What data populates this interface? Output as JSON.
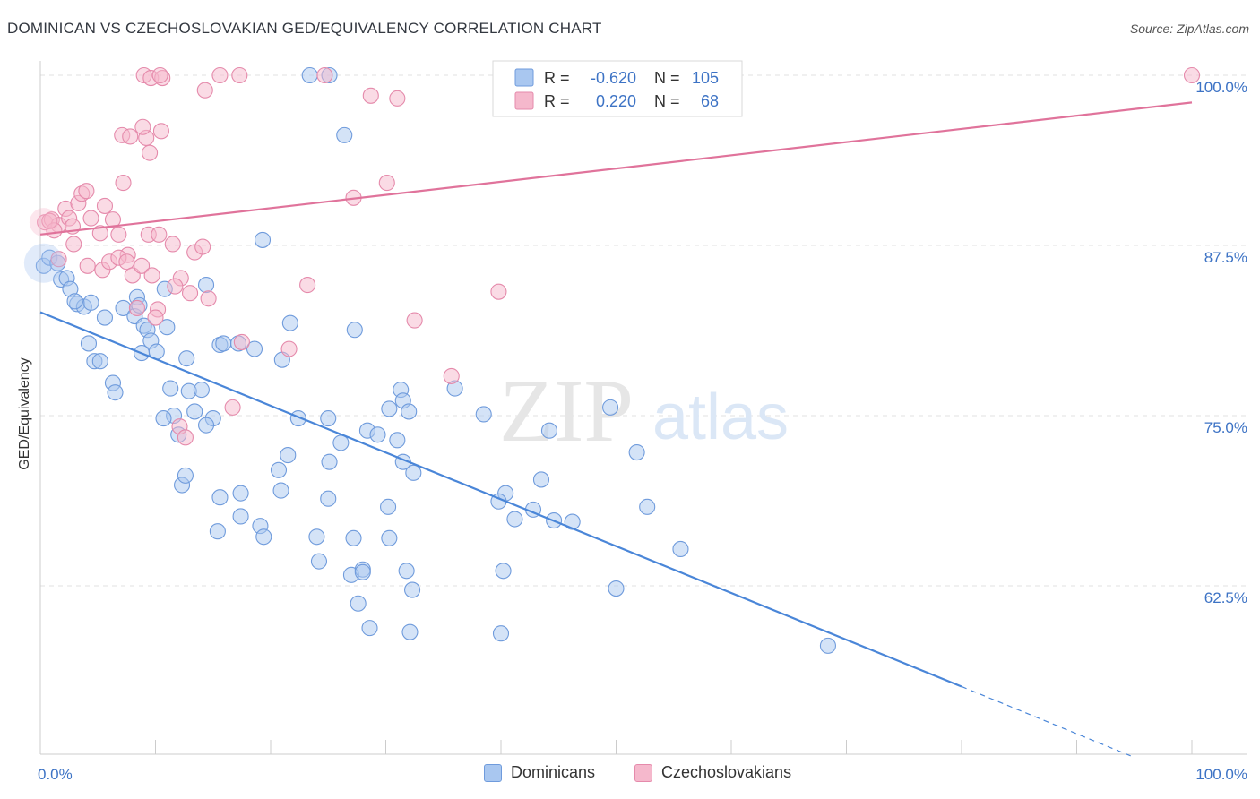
{
  "title": "DOMINICAN VS CZECHOSLOVAKIAN GED/EQUIVALENCY CORRELATION CHART",
  "source": "Source: ZipAtlas.com",
  "watermark": {
    "zip": "ZIP",
    "atlas": "atlas"
  },
  "colors": {
    "blue": "#4a86d8",
    "blue_fill": "#a9c7f0",
    "pink": "#e0739b",
    "pink_fill": "#f5b8cc",
    "axis_label_blue": "#3d73c5",
    "grid": "#e2e2e2"
  },
  "legend_top": [
    {
      "r_label": "R =",
      "r_value": "-0.620",
      "n_label": "N =",
      "n_value": "105"
    },
    {
      "r_label": "R =",
      "r_value": "0.220",
      "n_label": "N =",
      "n_value": "68"
    }
  ],
  "legend_bottom": [
    "Dominicans",
    "Czechoslovakians"
  ],
  "chart_data": {
    "type": "scatter",
    "xlabel": "",
    "ylabel": "GED/Equivalency",
    "xlim": [
      0,
      100
    ],
    "ylim": [
      52,
      100.5
    ],
    "x_tick_labels": [
      "0.0%",
      "100.0%"
    ],
    "y_ticks": [
      62.5,
      75.0,
      87.5,
      100.0
    ],
    "y_tick_labels": [
      "62.5%",
      "75.0%",
      "87.5%",
      "100.0%"
    ],
    "grid": true,
    "legend_placement": "top-center",
    "series": [
      {
        "name": "Dominicans",
        "r": -0.62,
        "n": 105,
        "trend": {
          "x0": 0,
          "y0": 82.6,
          "x1": 80,
          "y1": 55.1,
          "dash_x1": 95,
          "dash_y1": 49.9
        },
        "points": [
          [
            0.3,
            86.0
          ],
          [
            0.8,
            86.6
          ],
          [
            1.5,
            86.2
          ],
          [
            1.8,
            85.0
          ],
          [
            2.3,
            85.1
          ],
          [
            2.6,
            84.3
          ],
          [
            3.2,
            83.2
          ],
          [
            3.8,
            83.0
          ],
          [
            4.4,
            83.3
          ],
          [
            5.6,
            82.2
          ],
          [
            3.0,
            83.4
          ],
          [
            4.2,
            80.3
          ],
          [
            4.7,
            79.0
          ],
          [
            5.2,
            79.0
          ],
          [
            6.3,
            77.4
          ],
          [
            6.5,
            76.7
          ],
          [
            7.2,
            82.9
          ],
          [
            8.4,
            83.7
          ],
          [
            8.2,
            82.3
          ],
          [
            8.6,
            83.1
          ],
          [
            9.0,
            81.6
          ],
          [
            9.3,
            81.3
          ],
          [
            9.6,
            80.5
          ],
          [
            8.8,
            79.6
          ],
          [
            10.1,
            79.7
          ],
          [
            10.8,
            84.3
          ],
          [
            11.0,
            81.5
          ],
          [
            12.7,
            79.2
          ],
          [
            11.3,
            77.0
          ],
          [
            12.9,
            76.8
          ],
          [
            11.6,
            75.0
          ],
          [
            14.0,
            76.9
          ],
          [
            10.7,
            74.8
          ],
          [
            13.4,
            75.3
          ],
          [
            15.0,
            74.8
          ],
          [
            14.4,
            74.3
          ],
          [
            12.0,
            73.6
          ],
          [
            15.6,
            80.2
          ],
          [
            15.9,
            80.3
          ],
          [
            17.2,
            80.3
          ],
          [
            18.6,
            79.9
          ],
          [
            21.0,
            79.1
          ],
          [
            19.3,
            87.9
          ],
          [
            21.7,
            81.8
          ],
          [
            12.3,
            69.9
          ],
          [
            12.6,
            70.6
          ],
          [
            15.6,
            69.0
          ],
          [
            17.4,
            69.3
          ],
          [
            15.4,
            66.5
          ],
          [
            17.4,
            67.6
          ],
          [
            19.1,
            66.9
          ],
          [
            19.4,
            66.1
          ],
          [
            21.5,
            72.1
          ],
          [
            20.7,
            71.0
          ],
          [
            20.9,
            69.5
          ],
          [
            25.0,
            74.8
          ],
          [
            22.4,
            74.8
          ],
          [
            26.1,
            73.0
          ],
          [
            25.1,
            71.6
          ],
          [
            25.0,
            68.9
          ],
          [
            24.0,
            66.1
          ],
          [
            27.2,
            66.0
          ],
          [
            24.2,
            64.3
          ],
          [
            27.0,
            63.3
          ],
          [
            28.0,
            63.7
          ],
          [
            27.6,
            61.2
          ],
          [
            31.0,
            73.2
          ],
          [
            31.5,
            71.6
          ],
          [
            32.4,
            70.8
          ],
          [
            30.2,
            68.3
          ],
          [
            30.3,
            66.0
          ],
          [
            28.0,
            63.5
          ],
          [
            31.8,
            63.6
          ],
          [
            32.3,
            62.2
          ],
          [
            28.6,
            59.4
          ],
          [
            32.1,
            59.1
          ],
          [
            23.4,
            100.0
          ],
          [
            25.1,
            100.0
          ],
          [
            26.4,
            95.6
          ],
          [
            27.3,
            81.3
          ],
          [
            28.4,
            73.9
          ],
          [
            30.3,
            75.5
          ],
          [
            31.3,
            76.9
          ],
          [
            31.5,
            76.1
          ],
          [
            38.5,
            75.1
          ],
          [
            40.4,
            69.3
          ],
          [
            39.8,
            68.7
          ],
          [
            41.2,
            67.4
          ],
          [
            42.8,
            68.1
          ],
          [
            43.5,
            70.3
          ],
          [
            44.2,
            73.9
          ],
          [
            44.6,
            67.3
          ],
          [
            46.2,
            67.2
          ],
          [
            49.5,
            75.6
          ],
          [
            51.8,
            72.3
          ],
          [
            52.7,
            68.3
          ],
          [
            50.0,
            62.3
          ],
          [
            55.6,
            65.2
          ],
          [
            40.2,
            63.6
          ],
          [
            40.0,
            59.0
          ],
          [
            68.4,
            58.1
          ],
          [
            29.3,
            73.6
          ],
          [
            32.0,
            75.3
          ],
          [
            36.0,
            77.0
          ],
          [
            14.4,
            84.6
          ]
        ]
      },
      {
        "name": "Czechoslovakians",
        "r": 0.22,
        "n": 68,
        "trend": {
          "x0": 0,
          "y0": 88.3,
          "x1": 100,
          "y1": 98.0
        },
        "points": [
          [
            0.4,
            89.2
          ],
          [
            1.0,
            89.4
          ],
          [
            1.6,
            89.0
          ],
          [
            2.2,
            90.2
          ],
          [
            2.5,
            89.5
          ],
          [
            2.8,
            88.9
          ],
          [
            3.3,
            90.6
          ],
          [
            3.6,
            91.3
          ],
          [
            4.0,
            91.5
          ],
          [
            4.4,
            89.5
          ],
          [
            5.2,
            88.4
          ],
          [
            5.6,
            90.4
          ],
          [
            6.3,
            89.4
          ],
          [
            6.8,
            88.3
          ],
          [
            7.2,
            92.1
          ],
          [
            7.6,
            86.8
          ],
          [
            1.2,
            88.6
          ],
          [
            1.6,
            86.5
          ],
          [
            2.9,
            87.6
          ],
          [
            4.1,
            86.0
          ],
          [
            5.4,
            85.7
          ],
          [
            6.0,
            86.3
          ],
          [
            6.8,
            86.6
          ],
          [
            7.5,
            86.3
          ],
          [
            8.0,
            85.3
          ],
          [
            8.8,
            86.0
          ],
          [
            9.4,
            88.3
          ],
          [
            9.7,
            85.3
          ],
          [
            10.3,
            88.3
          ],
          [
            11.5,
            87.6
          ],
          [
            12.2,
            85.1
          ],
          [
            13.4,
            87.0
          ],
          [
            14.1,
            87.4
          ],
          [
            14.6,
            83.6
          ],
          [
            11.7,
            84.5
          ],
          [
            13.0,
            84.0
          ],
          [
            8.4,
            82.9
          ],
          [
            10.2,
            82.8
          ],
          [
            10.0,
            82.2
          ],
          [
            12.1,
            74.2
          ],
          [
            12.6,
            73.4
          ],
          [
            16.7,
            75.6
          ],
          [
            17.5,
            80.4
          ],
          [
            21.6,
            79.9
          ],
          [
            23.2,
            84.6
          ],
          [
            32.5,
            82.0
          ],
          [
            35.7,
            77.9
          ],
          [
            39.8,
            84.1
          ],
          [
            27.2,
            91.0
          ],
          [
            30.1,
            92.1
          ],
          [
            10.5,
            95.9
          ],
          [
            9.2,
            95.4
          ],
          [
            9.5,
            94.3
          ],
          [
            8.9,
            96.2
          ],
          [
            7.1,
            95.6
          ],
          [
            7.8,
            95.5
          ],
          [
            9.0,
            100.0
          ],
          [
            9.6,
            99.8
          ],
          [
            10.6,
            99.8
          ],
          [
            10.4,
            100.0
          ],
          [
            14.3,
            98.9
          ],
          [
            15.6,
            100.0
          ],
          [
            17.3,
            100.0
          ],
          [
            24.7,
            100.0
          ],
          [
            28.7,
            98.5
          ],
          [
            31.0,
            98.3
          ],
          [
            100.0,
            100.0
          ],
          [
            0.8,
            89.3
          ]
        ]
      }
    ]
  }
}
